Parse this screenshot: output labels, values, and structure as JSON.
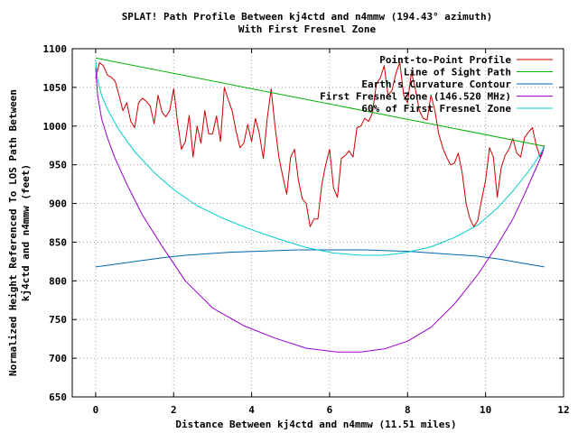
{
  "chart_data": {
    "type": "line",
    "title": "SPLAT! Path Profile Between kj4ctd and n4mmw (194.43° azimuth)",
    "subtitle": "With First Fresnel Zone",
    "xlabel": "Distance Between kj4ctd and n4mmw (11.51 miles)",
    "ylabel_line1": "Normalized Height Referenced To LOS Path Between",
    "ylabel_line2": "kj4ctd and n4mmw (feet)",
    "xlim": [
      -0.6,
      12
    ],
    "ylim": [
      650,
      1100
    ],
    "xticks": [
      0,
      2,
      4,
      6,
      8,
      10,
      12
    ],
    "yticks": [
      650,
      700,
      750,
      800,
      850,
      900,
      950,
      1000,
      1050,
      1100
    ],
    "grid": true,
    "legend_position": "top-right",
    "series": [
      {
        "name": "Point-to-Point Profile",
        "color": "#cc0000",
        "x": [
          0,
          0.1,
          0.2,
          0.3,
          0.4,
          0.5,
          0.6,
          0.7,
          0.8,
          0.9,
          1.0,
          1.1,
          1.2,
          1.3,
          1.4,
          1.5,
          1.6,
          1.7,
          1.8,
          1.9,
          2.0,
          2.1,
          2.2,
          2.3,
          2.4,
          2.5,
          2.6,
          2.7,
          2.8,
          2.9,
          3.0,
          3.1,
          3.2,
          3.3,
          3.4,
          3.5,
          3.6,
          3.7,
          3.8,
          3.9,
          4.0,
          4.1,
          4.2,
          4.3,
          4.4,
          4.5,
          4.6,
          4.7,
          4.8,
          4.9,
          5.0,
          5.1,
          5.2,
          5.3,
          5.4,
          5.5,
          5.6,
          5.7,
          5.8,
          5.9,
          6.0,
          6.1,
          6.2,
          6.3,
          6.4,
          6.5,
          6.6,
          6.7,
          6.8,
          6.9,
          7.0,
          7.1,
          7.2,
          7.3,
          7.4,
          7.5,
          7.6,
          7.7,
          7.8,
          7.9,
          8.0,
          8.1,
          8.2,
          8.3,
          8.4,
          8.5,
          8.6,
          8.7,
          8.8,
          8.9,
          9.0,
          9.1,
          9.2,
          9.3,
          9.4,
          9.5,
          9.6,
          9.7,
          9.8,
          9.9,
          10.0,
          10.1,
          10.2,
          10.3,
          10.4,
          10.5,
          10.6,
          10.7,
          10.8,
          10.9,
          11.0,
          11.1,
          11.2,
          11.3,
          11.4,
          11.51
        ],
        "values": [
          1062,
          1082,
          1078,
          1066,
          1063,
          1058,
          1040,
          1020,
          1030,
          1006,
          998,
          1030,
          1036,
          1032,
          1026,
          1003,
          1040,
          1018,
          1012,
          1020,
          1048,
          1005,
          970,
          980,
          1014,
          960,
          1000,
          978,
          1020,
          990,
          990,
          1013,
          980,
          1050,
          1034,
          1020,
          994,
          972,
          978,
          1002,
          980,
          1010,
          990,
          958,
          1010,
          1048,
          1000,
          960,
          935,
          912,
          960,
          970,
          930,
          906,
          900,
          870,
          880,
          880,
          924,
          950,
          970,
          920,
          908,
          958,
          962,
          968,
          960,
          998,
          1000,
          1010,
          1006,
          1017,
          1055,
          1062,
          1078,
          1040,
          1046,
          1068,
          1082,
          1040,
          1030,
          1070,
          1048,
          1020,
          1010,
          1008,
          1040,
          1020,
          990,
          972,
          960,
          950,
          952,
          965,
          940,
          900,
          880,
          870,
          878,
          905,
          930,
          972,
          960,
          908,
          946,
          962,
          970,
          984,
          965,
          960,
          985,
          992,
          998,
          975,
          960,
          975
        ]
      },
      {
        "name": "Line of Sight Path",
        "color": "#00b000",
        "x": [
          0,
          11.51
        ],
        "values": [
          1088,
          974
        ]
      },
      {
        "name": "Earth's Curvature Contour",
        "color": "#0066b0",
        "x": [
          0,
          0.58,
          1.15,
          1.73,
          2.3,
          2.88,
          3.45,
          4.03,
          4.6,
          5.18,
          5.755,
          6.33,
          6.91,
          7.48,
          8.06,
          8.63,
          9.21,
          9.78,
          10.36,
          10.93,
          11.51
        ],
        "values": [
          818,
          822,
          826,
          830,
          833,
          835,
          837,
          838,
          839,
          840,
          840,
          840,
          840,
          839,
          838,
          836,
          834,
          832,
          828,
          823,
          818
        ]
      },
      {
        "name": "First Fresnel Zone (146.520 MHz)",
        "color": "#9900cc",
        "x": [
          0,
          0.05,
          0.15,
          0.3,
          0.5,
          0.8,
          1.2,
          1.7,
          2.3,
          3.0,
          3.8,
          4.6,
          5.4,
          6.2,
          6.8,
          7.4,
          8.0,
          8.6,
          9.2,
          9.8,
          10.3,
          10.7,
          11.0,
          11.2,
          11.35,
          11.45,
          11.51
        ],
        "values": [
          1075,
          1040,
          1010,
          985,
          958,
          925,
          885,
          845,
          800,
          765,
          742,
          726,
          713,
          708,
          708,
          712,
          722,
          740,
          770,
          808,
          846,
          880,
          912,
          935,
          952,
          964,
          974
        ]
      },
      {
        "name": "60% of First Fresnel Zone",
        "color": "#00cccc",
        "x": [
          0,
          0.05,
          0.15,
          0.3,
          0.6,
          1.0,
          1.5,
          2.0,
          2.6,
          3.3,
          4.0,
          4.7,
          5.4,
          6.1,
          6.8,
          7.4,
          8.0,
          8.6,
          9.2,
          9.8,
          10.3,
          10.7,
          11.0,
          11.2,
          11.35,
          11.45,
          11.51
        ],
        "values": [
          1085,
          1060,
          1040,
          1022,
          995,
          967,
          940,
          918,
          897,
          880,
          866,
          854,
          843,
          836,
          833,
          833,
          837,
          844,
          856,
          872,
          894,
          916,
          935,
          948,
          960,
          968,
          974
        ]
      }
    ]
  }
}
